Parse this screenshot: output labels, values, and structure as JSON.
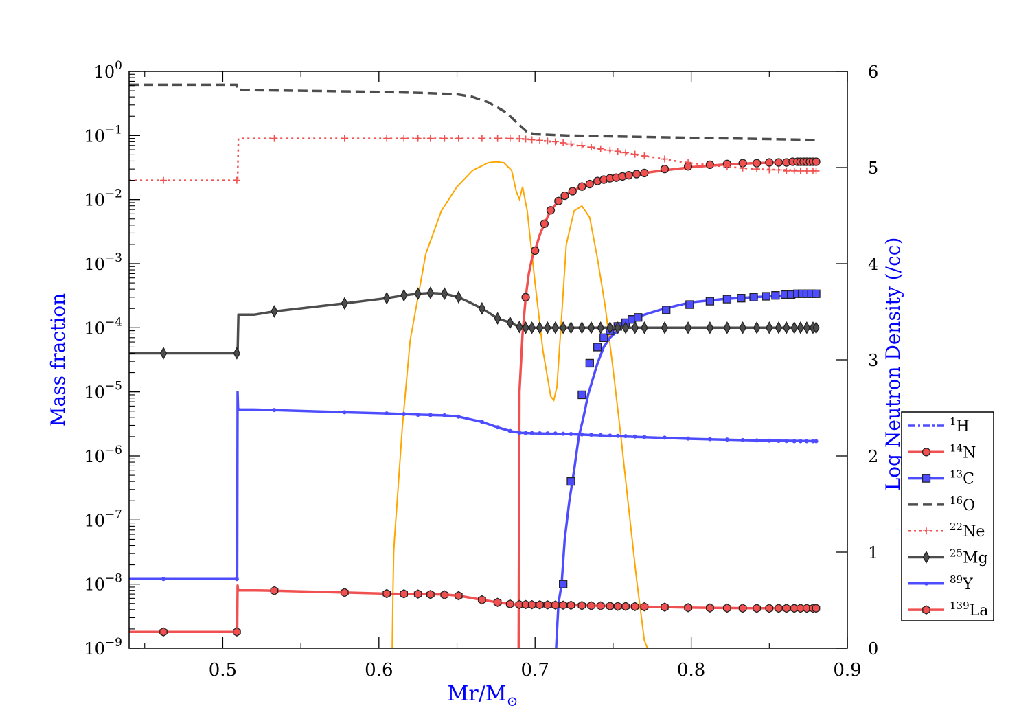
{
  "chart_data": {
    "type": "line",
    "title": "",
    "xlabel": "Mr/M",
    "xlabel_symbol": "⊙",
    "ylabel": "Mass fraction",
    "y2label": "Log Neutron Density (/cc)",
    "xlim": [
      0.44,
      0.9
    ],
    "ylim": [
      1e-09,
      1
    ],
    "yscale": "log",
    "y2lim": [
      0,
      6
    ],
    "x_ticks": [
      "0.5",
      "0.6",
      "0.7",
      "0.8",
      "0.9"
    ],
    "x_tick_values": [
      0.5,
      0.6,
      0.7,
      0.8,
      0.9
    ],
    "y_ticks": [
      {
        "base": "10",
        "exp": "0",
        "value": 1
      },
      {
        "base": "10",
        "exp": "−1",
        "value": 0.1
      },
      {
        "base": "10",
        "exp": "−2",
        "value": 0.01
      },
      {
        "base": "10",
        "exp": "−3",
        "value": 0.001
      },
      {
        "base": "10",
        "exp": "−4",
        "value": 0.0001
      },
      {
        "base": "10",
        "exp": "−5",
        "value": 1e-05
      },
      {
        "base": "10",
        "exp": "−6",
        "value": 1e-06
      },
      {
        "base": "10",
        "exp": "−7",
        "value": 1e-07
      },
      {
        "base": "10",
        "exp": "−8",
        "value": 1e-08
      },
      {
        "base": "10",
        "exp": "−9",
        "value": 1e-09
      }
    ],
    "y2_ticks": [
      "0",
      "1",
      "2",
      "3",
      "4",
      "5",
      "6"
    ],
    "y2_tick_values": [
      0,
      1,
      2,
      3,
      4,
      5,
      6
    ],
    "grid": false,
    "legend_position": "right",
    "label_color": "#0000ff",
    "series": [
      {
        "name": "1H",
        "sup": "1",
        "el": "H",
        "color": "#4d4dff",
        "dash": "dash-dot",
        "marker": "none",
        "x": [],
        "y": []
      },
      {
        "name": "14N",
        "sup": "14",
        "el": "N",
        "color": "#f05050",
        "dash": "solid",
        "marker": "circle",
        "x": [
          0.6895,
          0.69,
          0.692,
          0.694,
          0.696,
          0.698,
          0.7,
          0.703,
          0.706,
          0.71,
          0.715,
          0.72,
          0.725,
          0.73,
          0.74,
          0.75,
          0.76,
          0.77,
          0.78,
          0.79,
          0.8,
          0.82,
          0.84,
          0.86,
          0.88
        ],
        "y": [
          1e-09,
          1e-05,
          8e-05,
          0.0003,
          0.0007,
          0.0012,
          0.0016,
          0.0028,
          0.0042,
          0.0068,
          0.0095,
          0.012,
          0.014,
          0.016,
          0.0195,
          0.022,
          0.024,
          0.026,
          0.028,
          0.03,
          0.032,
          0.035,
          0.037,
          0.038,
          0.039
        ],
        "marker_x": [
          0.694,
          0.7,
          0.706,
          0.71,
          0.715,
          0.719,
          0.724,
          0.73,
          0.735,
          0.74,
          0.744,
          0.748,
          0.752,
          0.756,
          0.76,
          0.765,
          0.77,
          0.783,
          0.798,
          0.812,
          0.823,
          0.833,
          0.842,
          0.85,
          0.856,
          0.861,
          0.865,
          0.868,
          0.87,
          0.872,
          0.874,
          0.876,
          0.878,
          0.88
        ],
        "marker_y": [
          0.0003,
          0.0016,
          0.0042,
          0.0068,
          0.0095,
          0.0115,
          0.0135,
          0.016,
          0.0175,
          0.0195,
          0.0205,
          0.0215,
          0.022,
          0.023,
          0.024,
          0.025,
          0.026,
          0.03,
          0.033,
          0.035,
          0.036,
          0.037,
          0.037,
          0.038,
          0.038,
          0.038,
          0.039,
          0.039,
          0.039,
          0.039,
          0.039,
          0.039,
          0.039,
          0.039
        ]
      },
      {
        "name": "13C",
        "sup": "13",
        "el": "C",
        "color": "#4d4dff",
        "dash": "solid",
        "marker": "square",
        "x": [
          0.7135,
          0.715,
          0.717,
          0.719,
          0.722,
          0.725,
          0.728,
          0.731,
          0.734,
          0.737,
          0.74,
          0.744,
          0.748,
          0.753,
          0.758,
          0.765,
          0.77,
          0.78,
          0.79,
          0.8,
          0.82,
          0.84,
          0.86,
          0.88
        ],
        "y": [
          1e-09,
          5e-09,
          1e-08,
          5e-08,
          2e-07,
          6e-07,
          2e-06,
          4e-06,
          9e-06,
          1.6e-05,
          2.8e-05,
          5e-05,
          7e-05,
          9e-05,
          0.000115,
          0.00014,
          0.00016,
          0.00019,
          0.00022,
          0.00025,
          0.00028,
          0.0003,
          0.00032,
          0.00034
        ],
        "marker_x": [
          0.718,
          0.723,
          0.73,
          0.735,
          0.74,
          0.744,
          0.748,
          0.753,
          0.758,
          0.762,
          0.766,
          0.784,
          0.799,
          0.812,
          0.823,
          0.832,
          0.84,
          0.848,
          0.854,
          0.86,
          0.864,
          0.868,
          0.871,
          0.874,
          0.877,
          0.88
        ],
        "marker_y": [
          1e-08,
          4e-07,
          9e-06,
          2.8e-05,
          5e-05,
          7e-05,
          9e-05,
          0.000105,
          0.00012,
          0.000135,
          0.000145,
          0.00019,
          0.00023,
          0.00026,
          0.00028,
          0.00029,
          0.0003,
          0.00031,
          0.00032,
          0.00033,
          0.00033,
          0.00034,
          0.00034,
          0.00034,
          0.00034,
          0.00034
        ]
      },
      {
        "name": "16O",
        "sup": "16",
        "el": "O",
        "color": "#4d4d4d",
        "dash": "dashed",
        "marker": "none",
        "x": [
          0.44,
          0.509,
          0.5095,
          0.52,
          0.55,
          0.6,
          0.63,
          0.65,
          0.66,
          0.67,
          0.68,
          0.685,
          0.69,
          0.695,
          0.7,
          0.72,
          0.75,
          0.8,
          0.85,
          0.88
        ],
        "y": [
          0.62,
          0.62,
          0.52,
          0.51,
          0.5,
          0.48,
          0.46,
          0.44,
          0.4,
          0.33,
          0.24,
          0.19,
          0.145,
          0.113,
          0.105,
          0.1,
          0.097,
          0.092,
          0.088,
          0.085
        ]
      },
      {
        "name": "22Ne",
        "sup": "22",
        "el": "Ne",
        "color": "#f05050",
        "dash": "dotted",
        "marker": "plus",
        "x": [
          0.44,
          0.5095,
          0.51,
          0.55,
          0.6,
          0.65,
          0.68,
          0.69,
          0.7,
          0.71,
          0.72,
          0.73,
          0.74,
          0.75,
          0.76,
          0.77,
          0.78,
          0.79,
          0.8,
          0.82,
          0.84,
          0.86,
          0.88
        ],
        "y": [
          0.02,
          0.02,
          0.09,
          0.09,
          0.09,
          0.09,
          0.09,
          0.089,
          0.086,
          0.08,
          0.074,
          0.068,
          0.062,
          0.057,
          0.052,
          0.048,
          0.044,
          0.04,
          0.037,
          0.033,
          0.03,
          0.029,
          0.028
        ],
        "marker_x": [
          0.462,
          0.509,
          0.533,
          0.578,
          0.605,
          0.616,
          0.625,
          0.633,
          0.642,
          0.651,
          0.666,
          0.676,
          0.684,
          0.69,
          0.694,
          0.698,
          0.703,
          0.708,
          0.713,
          0.718,
          0.723,
          0.73,
          0.736,
          0.742,
          0.748,
          0.753,
          0.758,
          0.764,
          0.77,
          0.783,
          0.798,
          0.812,
          0.823,
          0.833,
          0.842,
          0.85,
          0.856,
          0.861,
          0.866,
          0.87,
          0.874,
          0.878,
          0.88
        ],
        "marker_y": [
          0.02,
          0.02,
          0.09,
          0.09,
          0.09,
          0.09,
          0.09,
          0.09,
          0.09,
          0.09,
          0.09,
          0.09,
          0.09,
          0.089,
          0.088,
          0.086,
          0.084,
          0.082,
          0.08,
          0.077,
          0.074,
          0.07,
          0.066,
          0.062,
          0.059,
          0.057,
          0.054,
          0.051,
          0.048,
          0.043,
          0.038,
          0.035,
          0.033,
          0.031,
          0.03,
          0.029,
          0.029,
          0.028,
          0.028,
          0.028,
          0.028,
          0.028,
          0.028
        ]
      },
      {
        "name": "25Mg",
        "sup": "25",
        "el": "Mg",
        "color": "#4d4d4d",
        "dash": "solid",
        "marker": "diamond",
        "x": [
          0.44,
          0.5095,
          0.51,
          0.52,
          0.533,
          0.578,
          0.605,
          0.616,
          0.625,
          0.633,
          0.642,
          0.651,
          0.658,
          0.666,
          0.676,
          0.684,
          0.69,
          0.7,
          0.72,
          0.76,
          0.8,
          0.88
        ],
        "y": [
          4e-05,
          4e-05,
          0.00016,
          0.00016,
          0.00018,
          0.00024,
          0.00029,
          0.00032,
          0.00034,
          0.00035,
          0.00034,
          0.0003,
          0.00025,
          0.0002,
          0.00014,
          0.00012,
          0.000103,
          0.0001,
          0.0001,
          0.0001,
          0.0001,
          0.0001
        ],
        "marker_x": [
          0.462,
          0.509,
          0.533,
          0.578,
          0.605,
          0.616,
          0.625,
          0.633,
          0.642,
          0.651,
          0.666,
          0.676,
          0.684,
          0.69,
          0.694,
          0.698,
          0.703,
          0.708,
          0.713,
          0.718,
          0.723,
          0.73,
          0.736,
          0.742,
          0.748,
          0.753,
          0.758,
          0.764,
          0.77,
          0.783,
          0.798,
          0.812,
          0.823,
          0.833,
          0.842,
          0.85,
          0.856,
          0.861,
          0.866,
          0.87,
          0.874,
          0.878,
          0.88
        ],
        "marker_y": [
          4e-05,
          4e-05,
          0.00018,
          0.00024,
          0.00029,
          0.00032,
          0.00034,
          0.00035,
          0.00034,
          0.0003,
          0.0002,
          0.00014,
          0.00012,
          0.000103,
          0.0001,
          0.0001,
          0.0001,
          0.0001,
          0.0001,
          0.0001,
          0.0001,
          0.0001,
          0.0001,
          0.0001,
          0.0001,
          0.0001,
          0.0001,
          0.0001,
          0.0001,
          0.0001,
          0.0001,
          0.0001,
          0.0001,
          0.0001,
          0.0001,
          0.0001,
          0.0001,
          0.0001,
          0.0001,
          0.0001,
          0.0001,
          0.0001,
          0.0001
        ]
      },
      {
        "name": "89Y",
        "sup": "89",
        "el": "Y",
        "color": "#4d4dff",
        "dash": "solid",
        "marker": "dot",
        "x": [
          0.44,
          0.5092,
          0.5095,
          0.5098,
          0.5105,
          0.52,
          0.533,
          0.578,
          0.605,
          0.625,
          0.642,
          0.651,
          0.666,
          0.676,
          0.684,
          0.69,
          0.7,
          0.72,
          0.76,
          0.8,
          0.84,
          0.88
        ],
        "y": [
          1.2e-08,
          1.2e-08,
          1e-05,
          5.5e-06,
          5.3e-06,
          5.3e-06,
          5.2e-06,
          4.8e-06,
          4.6e-06,
          4.4e-06,
          4.3e-06,
          4.1e-06,
          3.4e-06,
          2.8e-06,
          2.45e-06,
          2.3e-06,
          2.25e-06,
          2.2e-06,
          2e-06,
          1.85e-06,
          1.75e-06,
          1.7e-06
        ],
        "marker_x": [
          0.462,
          0.509,
          0.533,
          0.578,
          0.605,
          0.616,
          0.625,
          0.633,
          0.642,
          0.651,
          0.666,
          0.676,
          0.684,
          0.69,
          0.694,
          0.698,
          0.703,
          0.708,
          0.713,
          0.718,
          0.723,
          0.73,
          0.736,
          0.742,
          0.748,
          0.753,
          0.758,
          0.764,
          0.77,
          0.783,
          0.798,
          0.812,
          0.823,
          0.833,
          0.842,
          0.85,
          0.856,
          0.861,
          0.866,
          0.87,
          0.874,
          0.878,
          0.88
        ],
        "marker_y": [
          1.2e-08,
          1.2e-08,
          5.2e-06,
          4.8e-06,
          4.6e-06,
          4.5e-06,
          4.4e-06,
          4.35e-06,
          4.3e-06,
          4.1e-06,
          3.4e-06,
          2.8e-06,
          2.45e-06,
          2.3e-06,
          2.28e-06,
          2.27e-06,
          2.26e-06,
          2.25e-06,
          2.24e-06,
          2.22e-06,
          2.2e-06,
          2.17e-06,
          2.14e-06,
          2.11e-06,
          2.08e-06,
          2.06e-06,
          2.04e-06,
          2.01e-06,
          1.98e-06,
          1.93e-06,
          1.87e-06,
          1.83e-06,
          1.8e-06,
          1.77e-06,
          1.75e-06,
          1.73e-06,
          1.72e-06,
          1.71e-06,
          1.7e-06,
          1.7e-06,
          1.7e-06,
          1.7e-06,
          1.7e-06
        ]
      },
      {
        "name": "139La",
        "sup": "139",
        "el": "La",
        "color": "#f05050",
        "dash": "solid",
        "marker": "hexagon",
        "x": [
          0.44,
          0.5092,
          0.5095,
          0.5098,
          0.5105,
          0.52,
          0.533,
          0.578,
          0.605,
          0.625,
          0.642,
          0.651,
          0.666,
          0.676,
          0.684,
          0.69,
          0.7,
          0.72,
          0.76,
          0.8,
          0.84,
          0.88
        ],
        "y": [
          1.8e-09,
          1.8e-09,
          9.5e-09,
          8e-09,
          8e-09,
          8e-09,
          7.9e-09,
          7.4e-09,
          7.1e-09,
          7e-09,
          6.9e-09,
          6.6e-09,
          5.7e-09,
          5.2e-09,
          4.9e-09,
          4.8e-09,
          4.75e-09,
          4.7e-09,
          4.5e-09,
          4.3e-09,
          4.2e-09,
          4.2e-09
        ],
        "marker_x": [
          0.462,
          0.509,
          0.533,
          0.578,
          0.605,
          0.616,
          0.625,
          0.633,
          0.642,
          0.651,
          0.666,
          0.676,
          0.684,
          0.69,
          0.694,
          0.698,
          0.703,
          0.708,
          0.713,
          0.718,
          0.723,
          0.73,
          0.736,
          0.742,
          0.748,
          0.753,
          0.758,
          0.764,
          0.77,
          0.783,
          0.798,
          0.812,
          0.823,
          0.833,
          0.842,
          0.85,
          0.856,
          0.861,
          0.866,
          0.87,
          0.874,
          0.878,
          0.88
        ],
        "marker_y": [
          1.8e-09,
          1.8e-09,
          7.9e-09,
          7.4e-09,
          7.1e-09,
          7.05e-09,
          7e-09,
          6.9e-09,
          6.8e-09,
          6.6e-09,
          5.7e-09,
          5.2e-09,
          4.9e-09,
          4.8e-09,
          4.8e-09,
          4.78e-09,
          4.76e-09,
          4.74e-09,
          4.72e-09,
          4.7e-09,
          4.68e-09,
          4.64e-09,
          4.6e-09,
          4.58e-09,
          4.55e-09,
          4.52e-09,
          4.5e-09,
          4.47e-09,
          4.44e-09,
          4.38e-09,
          4.3e-09,
          4.26e-09,
          4.23e-09,
          4.21e-09,
          4.2e-09,
          4.2e-09,
          4.2e-09,
          4.2e-09,
          4.2e-09,
          4.2e-09,
          4.2e-09,
          4.2e-09,
          4.2e-09
        ]
      }
    ],
    "neutron_density": {
      "name": "",
      "axis": "right",
      "color": "#ffa500",
      "x": [
        0.6085,
        0.609,
        0.6095,
        0.61,
        0.612,
        0.615,
        0.62,
        0.63,
        0.64,
        0.65,
        0.66,
        0.67,
        0.675,
        0.68,
        0.685,
        0.688,
        0.69,
        0.692,
        0.695,
        0.7,
        0.705,
        0.71,
        0.712,
        0.714,
        0.717,
        0.72,
        0.725,
        0.73,
        0.735,
        0.74,
        0.745,
        0.75,
        0.755,
        0.76,
        0.765,
        0.77,
        0.772
      ],
      "y": [
        0,
        0.6,
        1.0,
        1.15,
        1.6,
        2.3,
        3.2,
        4.1,
        4.55,
        4.8,
        4.97,
        5.05,
        5.06,
        5.05,
        4.97,
        4.75,
        4.67,
        4.8,
        4.55,
        3.8,
        3.1,
        2.62,
        2.58,
        2.72,
        3.45,
        4.2,
        4.55,
        4.6,
        4.48,
        4.05,
        3.55,
        2.9,
        2.2,
        1.45,
        0.72,
        0.08,
        0
      ]
    }
  }
}
